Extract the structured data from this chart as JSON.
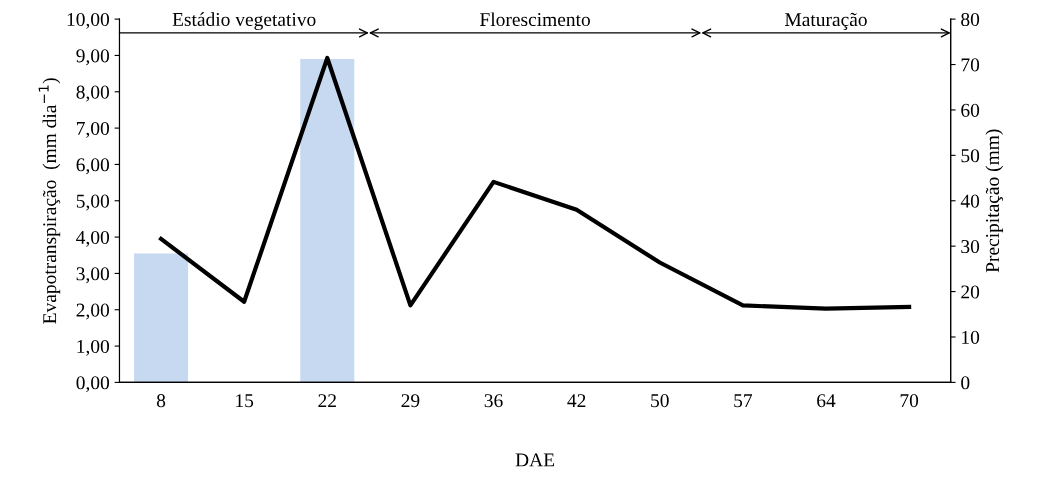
{
  "chart_data": {
    "type": "line",
    "xlabel": "DAE",
    "ylabel": "Evapotranspiração  (mm dia$^{−1}$)",
    "y2label": "Precipitação (mm)",
    "categories": [
      "8",
      "15",
      "22",
      "29",
      "36",
      "42",
      "50",
      "57",
      "64",
      "70"
    ],
    "series": [
      {
        "type": "bar",
        "axis": "y2",
        "color": "#c6d9f1",
        "values": [
          28.4,
          null,
          71.2,
          null,
          null,
          null,
          null,
          null,
          null,
          null
        ]
      },
      {
        "axis": "y",
        "color": "#000000",
        "values": [
          3.95,
          2.22,
          8.93,
          2.12,
          5.52,
          4.75,
          3.3,
          2.12,
          2.03,
          2.08
        ]
      }
    ],
    "ylim": [
      0,
      10
    ],
    "yticks": [
      {
        "value": 0,
        "label": "0,00"
      },
      {
        "value": 1,
        "label": "1,00"
      },
      {
        "value": 2,
        "label": "2,00"
      },
      {
        "value": 3,
        "label": "3,00"
      },
      {
        "value": 4,
        "label": "4,00"
      },
      {
        "value": 5,
        "label": "5,00"
      },
      {
        "value": 6,
        "label": "6,00"
      },
      {
        "value": 7,
        "label": "7,00"
      },
      {
        "value": 8,
        "label": "8,00"
      },
      {
        "value": 9,
        "label": "9,00"
      },
      {
        "value": 10,
        "label": "10,00"
      }
    ],
    "y2lim": [
      0,
      80
    ],
    "y2ticks": [
      0,
      10,
      20,
      30,
      40,
      50,
      60,
      70,
      80
    ],
    "annotations": [
      "Estádio vegetativo",
      "Florescimento",
      "Maturação"
    ],
    "grid": false,
    "legend": false,
    "marker": "none",
    "line_style": "solid"
  }
}
